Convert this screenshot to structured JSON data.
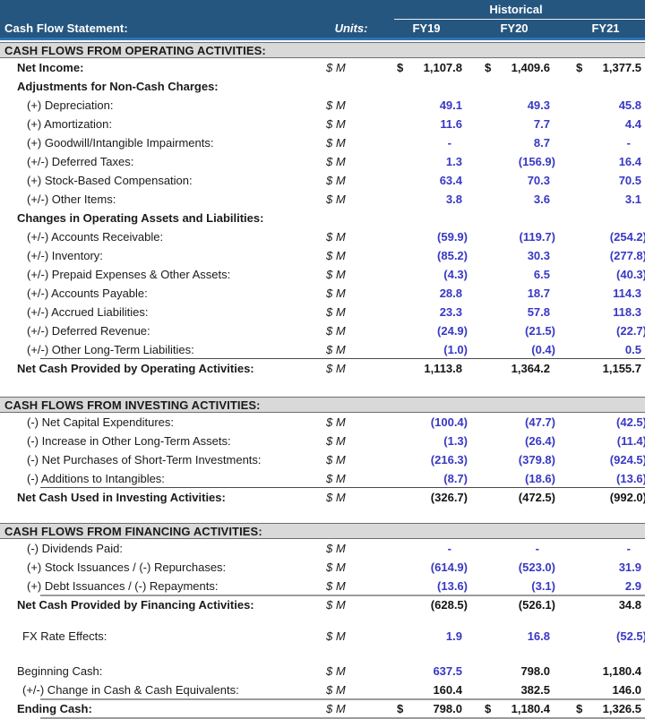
{
  "colors": {
    "header_navy": "#25567F",
    "header_accent": "#2E75B6",
    "band_gray": "#D9D9D9",
    "value_blue": "#3838C4"
  },
  "currency_symbol": "$",
  "header": {
    "title": "Cash Flow Statement:",
    "units_label": "Units:",
    "group_label": "Historical",
    "columns": [
      "FY19",
      "FY20",
      "FY21"
    ]
  },
  "rows": [
    {
      "type": "section",
      "label": "CASH FLOWS FROM OPERATING ACTIVITIES:"
    },
    {
      "type": "item",
      "label": "Net Income:",
      "indent": 1,
      "bold": true,
      "units": "$ M",
      "dollar": true,
      "value_color": "black",
      "values": [
        "1,107.8",
        "1,409.6",
        "1,377.5"
      ]
    },
    {
      "type": "subheader",
      "label": "Adjustments for Non-Cash Charges:",
      "indent": 1,
      "bold": true,
      "units": "",
      "values": []
    },
    {
      "type": "item",
      "label": "(+) Depreciation:",
      "indent": 3,
      "units": "$ M",
      "value_color": "blue",
      "values": [
        "49.1",
        "49.3",
        "45.8"
      ]
    },
    {
      "type": "item",
      "label": "(+) Amortization:",
      "indent": 3,
      "units": "$ M",
      "value_color": "blue",
      "values": [
        "11.6",
        "7.7",
        "4.4"
      ]
    },
    {
      "type": "item",
      "label": "(+) Goodwill/Intangible Impairments:",
      "indent": 3,
      "units": "$ M",
      "value_color": "blue",
      "values": [
        "-",
        "8.7",
        "-"
      ]
    },
    {
      "type": "item",
      "label": "(+/-) Deferred Taxes:",
      "indent": 3,
      "units": "$ M",
      "value_color": "blue",
      "values": [
        "1.3",
        "(156.9)",
        "16.4"
      ]
    },
    {
      "type": "item",
      "label": "(+) Stock-Based Compensation:",
      "indent": 3,
      "units": "$ M",
      "value_color": "blue",
      "values": [
        "63.4",
        "70.3",
        "70.5"
      ]
    },
    {
      "type": "item",
      "label": "(+/-) Other Items:",
      "indent": 3,
      "units": "$ M",
      "value_color": "blue",
      "values": [
        "3.8",
        "3.6",
        "3.1"
      ]
    },
    {
      "type": "subheader",
      "label": "Changes in Operating Assets and Liabilities:",
      "indent": 1,
      "bold": true,
      "units": "",
      "values": []
    },
    {
      "type": "item",
      "label": "(+/-) Accounts Receivable:",
      "indent": 3,
      "units": "$ M",
      "value_color": "blue",
      "values": [
        "(59.9)",
        "(119.7)",
        "(254.2)"
      ]
    },
    {
      "type": "item",
      "label": "(+/-) Inventory:",
      "indent": 3,
      "units": "$ M",
      "value_color": "blue",
      "values": [
        "(85.2)",
        "30.3",
        "(277.8)"
      ]
    },
    {
      "type": "item",
      "label": "(+/-) Prepaid Expenses & Other Assets:",
      "indent": 3,
      "units": "$ M",
      "value_color": "blue",
      "values": [
        "(4.3)",
        "6.5",
        "(40.3)"
      ]
    },
    {
      "type": "item",
      "label": "(+/-) Accounts Payable:",
      "indent": 3,
      "units": "$ M",
      "value_color": "blue",
      "values": [
        "28.8",
        "18.7",
        "114.3"
      ]
    },
    {
      "type": "item",
      "label": "(+/-) Accrued Liabilities:",
      "indent": 3,
      "units": "$ M",
      "value_color": "blue",
      "values": [
        "23.3",
        "57.8",
        "118.3"
      ]
    },
    {
      "type": "item",
      "label": "(+/-) Deferred Revenue:",
      "indent": 3,
      "units": "$ M",
      "value_color": "blue",
      "values": [
        "(24.9)",
        "(21.5)",
        "(22.7)"
      ]
    },
    {
      "type": "item",
      "label": "(+/-) Other Long-Term Liabilities:",
      "indent": 3,
      "units": "$ M",
      "value_color": "blue",
      "values": [
        "(1.0)",
        "(0.4)",
        "0.5"
      ]
    },
    {
      "type": "total",
      "label": "Net Cash Provided by Operating Activities:",
      "indent": 1,
      "bold": true,
      "units": "$ M",
      "value_color": "black",
      "border_top": "thin",
      "values": [
        "1,113.8",
        "1,364.2",
        "1,155.7"
      ]
    },
    {
      "type": "spacer",
      "size": "a"
    },
    {
      "type": "section",
      "label": "CASH FLOWS FROM INVESTING ACTIVITIES:"
    },
    {
      "type": "item",
      "label": "(-) Net Capital Expenditures:",
      "indent": 3,
      "units": "$ M",
      "value_color": "blue",
      "values": [
        "(100.4)",
        "(47.7)",
        "(42.5)"
      ]
    },
    {
      "type": "item",
      "label": "(-) Increase in Other Long-Term Assets:",
      "indent": 3,
      "units": "$ M",
      "value_color": "blue",
      "values": [
        "(1.3)",
        "(26.4)",
        "(11.4)"
      ]
    },
    {
      "type": "item",
      "label": "(-) Net Purchases of Short-Term Investments:",
      "indent": 3,
      "units": "$ M",
      "value_color": "blue",
      "values": [
        "(216.3)",
        "(379.8)",
        "(924.5)"
      ]
    },
    {
      "type": "item",
      "label": "(-) Additions to Intangibles:",
      "indent": 3,
      "units": "$ M",
      "value_color": "blue",
      "values": [
        "(8.7)",
        "(18.6)",
        "(13.6)"
      ]
    },
    {
      "type": "total",
      "label": "Net Cash Used in Investing Activities:",
      "indent": 1,
      "bold": true,
      "units": "$ M",
      "value_color": "black",
      "border_top": "thin",
      "values": [
        "(326.7)",
        "(472.5)",
        "(992.0)"
      ]
    },
    {
      "type": "spacer",
      "size": "b"
    },
    {
      "type": "section",
      "label": "CASH FLOWS FROM FINANCING ACTIVITIES:"
    },
    {
      "type": "item",
      "label": "(-) Dividends Paid:",
      "indent": 3,
      "units": "$ M",
      "value_color": "blue",
      "values": [
        "-",
        "-",
        "-"
      ]
    },
    {
      "type": "item",
      "label": "(+) Stock Issuances / (-) Repurchases:",
      "indent": 3,
      "units": "$ M",
      "value_color": "blue",
      "values": [
        "(614.9)",
        "(523.0)",
        "31.9"
      ]
    },
    {
      "type": "item",
      "label": "(+) Debt Issuances / (-) Repayments:",
      "indent": 3,
      "units": "$ M",
      "value_color": "blue",
      "values": [
        "(13.6)",
        "(3.1)",
        "2.9"
      ]
    },
    {
      "type": "total",
      "label": "Net Cash Provided by Financing Activities:",
      "indent": 1,
      "bold": true,
      "units": "$ M",
      "value_color": "black",
      "border_top": "heavy",
      "values": [
        "(628.5)",
        "(526.1)",
        "34.8"
      ]
    },
    {
      "type": "spacer",
      "size": "c"
    },
    {
      "type": "item",
      "label": "FX Rate Effects:",
      "indent": 2,
      "units": "$ M",
      "value_color": "blue",
      "values": [
        "1.9",
        "16.8",
        "(52.5)"
      ]
    },
    {
      "type": "spacer",
      "size": "d"
    },
    {
      "type": "item",
      "label": "Beginning Cash:",
      "indent": 1,
      "units": "$ M",
      "value_color": "black",
      "value_colors": [
        "blue",
        "black",
        "black"
      ],
      "values": [
        "637.5",
        "798.0",
        "1,180.4"
      ]
    },
    {
      "type": "item",
      "label": "(+/-) Change in Cash & Cash Equivalents:",
      "indent": 2,
      "units": "$ M",
      "value_color": "black",
      "values": [
        "160.4",
        "382.5",
        "146.0"
      ]
    },
    {
      "type": "total",
      "label": "Ending Cash:",
      "indent": 1,
      "bold": true,
      "units": "$ M",
      "dollar": true,
      "value_color": "black",
      "border_top": "heavy",
      "border_bottom": "heavy",
      "values": [
        "798.0",
        "1,180.4",
        "1,326.5"
      ]
    }
  ]
}
